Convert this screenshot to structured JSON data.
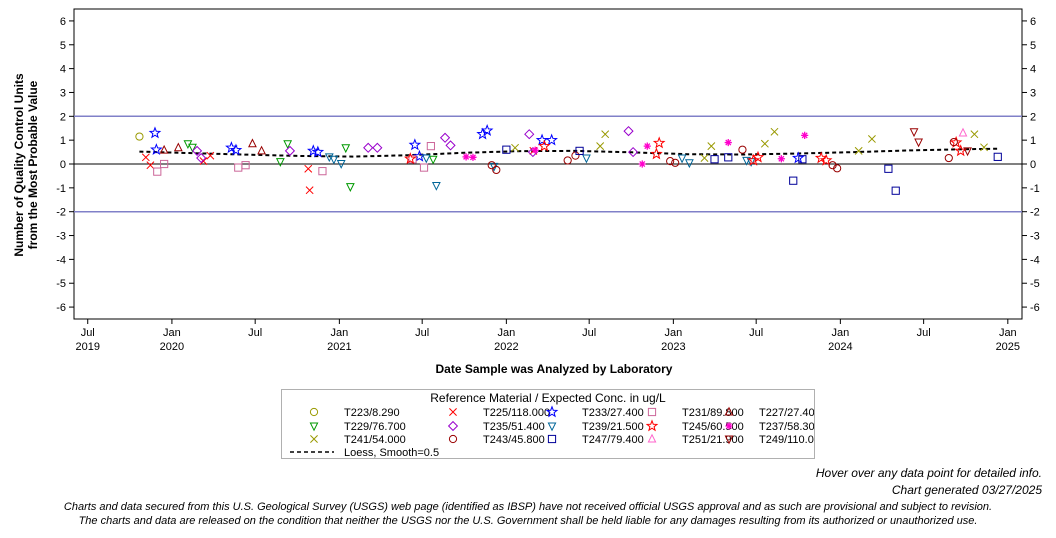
{
  "chart_data": {
    "type": "scatter",
    "xlabel": "Date Sample was Analyzed by Laboratory",
    "ylabel_lines": [
      "Number of Quality Control Units",
      "from the Most Probable Value"
    ],
    "ylim": [
      -6.5,
      6.5
    ],
    "yticks": [
      -6,
      -5,
      -4,
      -3,
      -2,
      -1,
      0,
      1,
      2,
      3,
      4,
      5,
      6
    ],
    "y_tick_labels": [
      "-6",
      "-5",
      "-4",
      "-3",
      "-2",
      "-1",
      "0",
      "1",
      "2",
      "3",
      "4",
      "5",
      "6"
    ],
    "xlim": [
      "2019-06-01",
      "2025-02-01"
    ],
    "x_ticks": [
      {
        "date": "2019-07-01",
        "label": "Jul",
        "year": "2019"
      },
      {
        "date": "2020-01-01",
        "label": "Jan",
        "year": "2020"
      },
      {
        "date": "2020-07-01",
        "label": "Jul",
        "year": ""
      },
      {
        "date": "2021-01-01",
        "label": "Jan",
        "year": "2021"
      },
      {
        "date": "2021-07-01",
        "label": "Jul",
        "year": ""
      },
      {
        "date": "2022-01-01",
        "label": "Jan",
        "year": "2022"
      },
      {
        "date": "2022-07-01",
        "label": "Jul",
        "year": ""
      },
      {
        "date": "2023-01-01",
        "label": "Jan",
        "year": "2023"
      },
      {
        "date": "2023-07-01",
        "label": "Jul",
        "year": ""
      },
      {
        "date": "2024-01-01",
        "label": "Jan",
        "year": "2024"
      },
      {
        "date": "2024-07-01",
        "label": "Jul",
        "year": ""
      },
      {
        "date": "2025-01-01",
        "label": "Jan",
        "year": "2025"
      }
    ],
    "reference_lines": [
      2,
      -2,
      0
    ],
    "grid": false,
    "legend_placement": "bottom",
    "legend_title": "Reference Material / Expected Conc. in ug/L",
    "series": [
      {
        "name": "T223/8.290",
        "marker": "circle",
        "color": "#999900",
        "points": [
          [
            "2019-10-22",
            1.15
          ]
        ]
      },
      {
        "name": "T225/118.000",
        "marker": "x",
        "color": "#ff0000",
        "points": [
          [
            "2019-11-05",
            0.28
          ],
          [
            "2019-11-15",
            -0.05
          ],
          [
            "2020-03-10",
            0.12
          ],
          [
            "2020-03-25",
            0.35
          ],
          [
            "2020-10-25",
            -0.2
          ],
          [
            "2020-10-28",
            -1.1
          ],
          [
            "2022-03-01",
            0.55
          ]
        ]
      },
      {
        "name": "T233/27.400",
        "marker": "star",
        "color": "#0000ff",
        "points": [
          [
            "2019-11-25",
            1.3
          ],
          [
            "2019-11-28",
            0.6
          ],
          [
            "2020-05-10",
            0.68
          ],
          [
            "2020-05-20",
            0.58
          ],
          [
            "2020-11-05",
            0.55
          ],
          [
            "2020-11-15",
            0.5
          ],
          [
            "2021-06-15",
            0.8
          ],
          [
            "2021-06-25",
            0.32
          ],
          [
            "2021-11-10",
            1.25
          ],
          [
            "2021-11-20",
            1.4
          ],
          [
            "2022-03-20",
            1.0
          ],
          [
            "2022-04-10",
            1.0
          ],
          [
            "2023-10-01",
            0.25
          ]
        ]
      },
      {
        "name": "T231/89.800",
        "marker": "square",
        "color": "#cc6699",
        "points": [
          [
            "2019-11-30",
            -0.32
          ],
          [
            "2019-12-15",
            0.0
          ],
          [
            "2020-05-25",
            -0.15
          ],
          [
            "2020-06-10",
            -0.05
          ],
          [
            "2020-11-25",
            -0.3
          ],
          [
            "2021-06-10",
            0.2
          ],
          [
            "2021-07-05",
            -0.15
          ],
          [
            "2021-07-20",
            0.75
          ]
        ]
      },
      {
        "name": "T227/27.400",
        "marker": "triangle",
        "color": "#990000",
        "points": [
          [
            "2019-12-15",
            0.58
          ],
          [
            "2020-01-15",
            0.68
          ],
          [
            "2020-06-25",
            0.85
          ],
          [
            "2020-07-15",
            0.55
          ]
        ]
      },
      {
        "name": "T229/76.700",
        "marker": "triangle-down",
        "color": "#009900",
        "points": [
          [
            "2020-02-05",
            0.85
          ],
          [
            "2020-02-15",
            0.7
          ],
          [
            "2020-08-25",
            0.1
          ],
          [
            "2020-09-10",
            0.85
          ],
          [
            "2021-01-15",
            0.68
          ],
          [
            "2021-01-25",
            -0.95
          ],
          [
            "2021-07-25",
            0.2
          ]
        ]
      },
      {
        "name": "T235/51.400",
        "marker": "diamond",
        "color": "#9900cc",
        "points": [
          [
            "2020-02-25",
            0.55
          ],
          [
            "2020-03-05",
            0.25
          ],
          [
            "2020-09-15",
            0.55
          ],
          [
            "2021-03-05",
            0.68
          ],
          [
            "2021-03-25",
            0.68
          ],
          [
            "2021-08-20",
            1.1
          ],
          [
            "2021-09-01",
            0.78
          ],
          [
            "2022-02-20",
            1.25
          ],
          [
            "2022-02-28",
            0.5
          ],
          [
            "2022-09-25",
            1.38
          ],
          [
            "2022-10-05",
            0.5
          ]
        ]
      },
      {
        "name": "T239/21.500",
        "marker": "triangle-down",
        "color": "#006699",
        "points": [
          [
            "2020-12-10",
            0.3
          ],
          [
            "2020-12-20",
            0.2
          ],
          [
            "2021-01-05",
            0.02
          ],
          [
            "2021-07-10",
            0.25
          ],
          [
            "2021-08-01",
            -0.9
          ],
          [
            "2021-12-05",
            -0.1
          ],
          [
            "2022-06-25",
            0.25
          ],
          [
            "2023-01-20",
            0.25
          ],
          [
            "2023-02-05",
            0.05
          ],
          [
            "2023-06-10",
            0.15
          ],
          [
            "2023-06-20",
            0.1
          ]
        ]
      },
      {
        "name": "T245/60.500",
        "marker": "star",
        "color": "#ff0000",
        "points": [
          [
            "2021-06-05",
            0.22
          ],
          [
            "2022-03-25",
            0.75
          ],
          [
            "2022-11-25",
            0.42
          ],
          [
            "2022-12-01",
            0.88
          ],
          [
            "2023-06-25",
            0.15
          ],
          [
            "2023-07-05",
            0.28
          ],
          [
            "2023-11-20",
            0.25
          ],
          [
            "2023-12-01",
            0.15
          ],
          [
            "2024-09-10",
            0.9
          ],
          [
            "2024-09-20",
            0.55
          ]
        ]
      },
      {
        "name": "T237/58.300",
        "marker": "asterisk",
        "color": "#ff00cc",
        "points": [
          [
            "2021-10-05",
            0.3
          ],
          [
            "2021-10-20",
            0.28
          ],
          [
            "2022-03-05",
            0.58
          ],
          [
            "2022-10-25",
            0.0
          ],
          [
            "2022-11-05",
            0.75
          ],
          [
            "2023-05-01",
            0.9
          ],
          [
            "2023-08-25",
            0.22
          ],
          [
            "2023-10-15",
            1.2
          ]
        ]
      },
      {
        "name": "T241/54.000",
        "marker": "x",
        "color": "#999900",
        "points": [
          [
            "2022-01-20",
            0.68
          ],
          [
            "2022-07-25",
            0.75
          ],
          [
            "2022-08-05",
            1.25
          ],
          [
            "2023-03-10",
            0.25
          ],
          [
            "2023-03-25",
            0.75
          ],
          [
            "2023-07-20",
            0.85
          ],
          [
            "2023-08-10",
            1.35
          ],
          [
            "2024-02-10",
            0.55
          ],
          [
            "2024-03-10",
            1.05
          ],
          [
            "2024-10-20",
            1.25
          ],
          [
            "2024-11-10",
            0.7
          ]
        ]
      },
      {
        "name": "T243/45.800",
        "marker": "circle",
        "color": "#990000",
        "points": [
          [
            "2021-11-30",
            -0.05
          ],
          [
            "2021-12-10",
            -0.25
          ],
          [
            "2022-05-15",
            0.15
          ],
          [
            "2022-06-01",
            0.35
          ],
          [
            "2022-12-25",
            0.12
          ],
          [
            "2023-01-05",
            0.05
          ],
          [
            "2023-06-01",
            0.6
          ],
          [
            "2023-12-15",
            -0.05
          ],
          [
            "2023-12-25",
            -0.18
          ],
          [
            "2024-08-25",
            0.25
          ],
          [
            "2024-09-05",
            0.92
          ]
        ]
      },
      {
        "name": "T247/79.400",
        "marker": "square",
        "color": "#000099",
        "points": [
          [
            "2022-01-01",
            0.6
          ],
          [
            "2022-06-10",
            0.55
          ],
          [
            "2023-04-01",
            0.2
          ],
          [
            "2023-05-01",
            0.28
          ],
          [
            "2023-09-20",
            -0.7
          ],
          [
            "2023-10-10",
            0.2
          ],
          [
            "2024-04-15",
            -0.2
          ],
          [
            "2024-05-01",
            -1.12
          ],
          [
            "2024-12-10",
            0.3
          ]
        ]
      },
      {
        "name": "T251/21.900",
        "marker": "triangle",
        "color": "#ff66cc",
        "points": [
          [
            "2024-09-25",
            1.3
          ]
        ]
      },
      {
        "name": "T249/110.000",
        "marker": "triangle-down",
        "color": "#990000",
        "points": [
          [
            "2024-06-10",
            1.35
          ],
          [
            "2024-06-20",
            0.92
          ],
          [
            "2024-10-05",
            0.55
          ]
        ]
      }
    ],
    "loess": {
      "name": "Loess, Smooth=0.5",
      "points": [
        [
          "2019-10-22",
          0.52
        ],
        [
          "2020-02-01",
          0.46
        ],
        [
          "2020-06-01",
          0.4
        ],
        [
          "2020-10-01",
          0.34
        ],
        [
          "2021-02-01",
          0.31
        ],
        [
          "2021-06-01",
          0.37
        ],
        [
          "2021-10-01",
          0.47
        ],
        [
          "2022-02-01",
          0.54
        ],
        [
          "2022-06-01",
          0.55
        ],
        [
          "2022-10-01",
          0.49
        ],
        [
          "2023-02-01",
          0.41
        ],
        [
          "2023-06-01",
          0.4
        ],
        [
          "2023-10-01",
          0.44
        ],
        [
          "2024-02-01",
          0.5
        ],
        [
          "2024-06-01",
          0.57
        ],
        [
          "2024-10-01",
          0.62
        ],
        [
          "2024-12-15",
          0.64
        ]
      ]
    }
  },
  "footer": {
    "hover_note": "Hover over any data point for detailed info.",
    "generated": "Chart generated 03/27/2025",
    "disclaimer_line1": "Charts and data secured from this U.S. Geological Survey (USGS) web page (identified as IBSP) have not received official USGS approval and as such are provisional and subject to revision.",
    "disclaimer_line2": "The charts and data are released on the condition that neither the USGS nor the U.S. Government shall be held liable for any damages resulting from its authorized or unauthorized use."
  }
}
